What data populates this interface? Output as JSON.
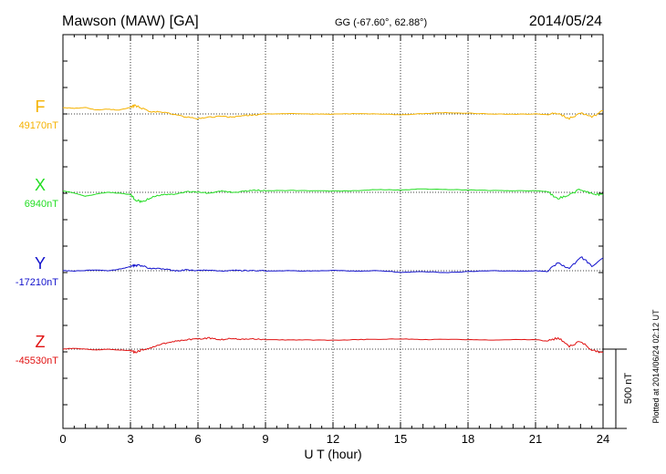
{
  "header": {
    "station": "Mawson (MAW)  [GA]",
    "coords": "GG (-67.60°,  62.88°)",
    "date": "2014/05/24"
  },
  "plotted_note": "Plotted at 2014/06/24 02:12 UT",
  "scale_bar": {
    "label": "500 nT",
    "value_nT": 500
  },
  "chart_data": {
    "type": "line",
    "xlabel": "U T (hour)",
    "xlim": [
      0,
      24
    ],
    "xticks": [
      0,
      3,
      6,
      9,
      12,
      15,
      18,
      21,
      24
    ],
    "xtick_labels": [
      "0",
      "3",
      "6",
      "9",
      "12",
      "15",
      "18",
      "21",
      "24"
    ],
    "grid": "vertical dotted at 3-hour intervals",
    "series": [
      {
        "name": "F",
        "baseline_label": "49170nT",
        "baseline_nT": 49170,
        "color": "#f5b200",
        "x": [
          0,
          0.5,
          1,
          1.5,
          2,
          2.5,
          3,
          3.2,
          3.5,
          4,
          4.5,
          5,
          5.5,
          6,
          6.5,
          7,
          7.5,
          8,
          8.5,
          9,
          10,
          11,
          12,
          13,
          14,
          15,
          16,
          17,
          18,
          19,
          20,
          21,
          21.5,
          22,
          22.5,
          23,
          23.5,
          24
        ],
        "values": [
          49210,
          49205,
          49210,
          49195,
          49200,
          49195,
          49210,
          49225,
          49205,
          49185,
          49180,
          49165,
          49150,
          49140,
          49150,
          49155,
          49150,
          49160,
          49165,
          49170,
          49172,
          49170,
          49168,
          49172,
          49170,
          49165,
          49172,
          49178,
          49175,
          49170,
          49168,
          49170,
          49165,
          49175,
          49140,
          49180,
          49150,
          49190
        ]
      },
      {
        "name": "X",
        "baseline_label": "6940nT",
        "baseline_nT": 6940,
        "color": "#22dd22",
        "x": [
          0,
          0.5,
          1,
          1.5,
          2,
          2.5,
          3,
          3.2,
          3.5,
          4,
          4.5,
          5,
          5.5,
          6,
          6.5,
          7,
          7.5,
          8,
          8.5,
          9,
          10,
          11,
          12,
          13,
          14,
          15,
          16,
          17,
          18,
          19,
          20,
          21,
          21.5,
          22,
          22.5,
          23,
          23.5,
          24
        ],
        "values": [
          6950,
          6935,
          6915,
          6930,
          6940,
          6935,
          6925,
          6895,
          6880,
          6915,
          6925,
          6930,
          6945,
          6940,
          6935,
          6948,
          6942,
          6945,
          6955,
          6950,
          6952,
          6950,
          6948,
          6950,
          6958,
          6955,
          6962,
          6958,
          6955,
          6952,
          6950,
          6950,
          6945,
          6900,
          6925,
          6960,
          6930,
          6925
        ]
      },
      {
        "name": "Y",
        "baseline_label": "-17210nT",
        "baseline_nT": -17210,
        "color": "#1111cc",
        "x": [
          0,
          0.5,
          1,
          1.5,
          2,
          2.5,
          3,
          3.2,
          3.5,
          4,
          4.5,
          5,
          5.5,
          6,
          6.5,
          7,
          7.5,
          8,
          8.5,
          9,
          10,
          11,
          12,
          13,
          14,
          15,
          16,
          17,
          18,
          19,
          20,
          21,
          21.5,
          22,
          22.5,
          23,
          23.5,
          24
        ],
        "values": [
          -17210,
          -17212,
          -17208,
          -17205,
          -17210,
          -17200,
          -17185,
          -17175,
          -17180,
          -17195,
          -17200,
          -17210,
          -17205,
          -17210,
          -17205,
          -17212,
          -17208,
          -17210,
          -17208,
          -17212,
          -17210,
          -17212,
          -17208,
          -17212,
          -17210,
          -17220,
          -17215,
          -17222,
          -17215,
          -17210,
          -17212,
          -17210,
          -17215,
          -17160,
          -17200,
          -17120,
          -17180,
          -17130
        ]
      },
      {
        "name": "Z",
        "baseline_label": "-45530nT",
        "baseline_nT": -45530,
        "color": "#e01010",
        "x": [
          0,
          0.5,
          1,
          1.5,
          2,
          2.5,
          3,
          3.2,
          3.5,
          4,
          4.5,
          5,
          5.5,
          6,
          6.5,
          7,
          7.5,
          8,
          8.5,
          9,
          10,
          11,
          12,
          13,
          14,
          15,
          16,
          17,
          18,
          19,
          20,
          21,
          21.5,
          22,
          22.5,
          23,
          23.5,
          24
        ],
        "values": [
          -45530,
          -45525,
          -45530,
          -45535,
          -45530,
          -45535,
          -45540,
          -45550,
          -45535,
          -45515,
          -45495,
          -45480,
          -45470,
          -45465,
          -45460,
          -45470,
          -45462,
          -45468,
          -45465,
          -45470,
          -45472,
          -45472,
          -45474,
          -45470,
          -45468,
          -45465,
          -45470,
          -45468,
          -45470,
          -45472,
          -45470,
          -45470,
          -45480,
          -45460,
          -45510,
          -45480,
          -45540,
          -45550
        ]
      }
    ]
  }
}
